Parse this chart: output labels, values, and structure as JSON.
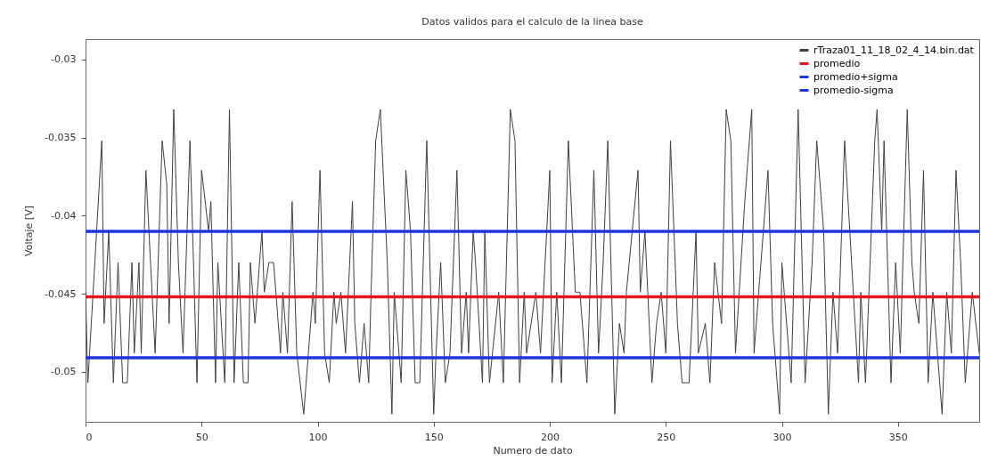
{
  "chart_data": {
    "type": "line",
    "title": "Datos validos para el calculo de la linea base",
    "xlabel": "Numero de dato",
    "ylabel": "Voltaje [V]",
    "xlim": [
      0,
      385
    ],
    "xticks": [
      0,
      50,
      100,
      150,
      200,
      250,
      300,
      350
    ],
    "ylim": [
      -0.0532,
      -0.0287
    ],
    "yticks": [
      -0.05,
      -0.045,
      -0.04,
      -0.035,
      -0.03
    ],
    "grid": false,
    "legend": "top right",
    "series": [
      {
        "name": "rTraza01_11_18_02_4_14.bin.dat",
        "color": "#404040",
        "x": [
          0,
          1,
          4,
          7,
          8,
          10,
          12,
          14,
          16,
          18,
          20,
          21,
          23,
          24,
          26,
          28,
          30,
          33,
          35,
          36,
          38,
          40,
          42,
          45,
          48,
          50,
          53,
          54,
          56,
          57,
          60,
          62,
          64,
          66,
          68,
          70,
          71,
          73,
          74,
          76,
          77,
          79,
          81,
          82,
          84,
          85,
          87,
          89,
          91,
          94,
          96,
          98,
          99,
          101,
          103,
          105,
          107,
          108,
          110,
          112,
          115,
          116,
          118,
          120,
          122,
          123,
          125,
          127,
          130,
          132,
          133,
          136,
          138,
          140,
          142,
          144,
          147,
          150,
          151,
          153,
          155,
          157,
          160,
          162,
          164,
          165,
          167,
          168,
          171,
          172,
          174,
          178,
          180,
          181,
          183,
          185,
          187,
          189,
          190,
          194,
          196,
          200,
          201,
          203,
          205,
          208,
          211,
          213,
          216,
          219,
          221,
          223,
          225,
          228,
          230,
          232,
          233,
          238,
          239,
          241,
          244,
          246,
          248,
          250,
          252,
          255,
          257,
          260,
          263,
          264,
          267,
          269,
          271,
          274,
          276,
          278,
          280,
          284,
          287,
          288,
          294,
          296,
          299,
          300,
          304,
          307,
          310,
          313,
          315,
          318,
          320,
          322,
          324,
          327,
          333,
          334,
          336,
          340,
          341,
          343,
          344,
          347,
          349,
          351,
          354,
          356,
          357,
          359,
          361,
          363,
          365,
          369,
          371,
          373,
          375,
          377,
          379,
          382,
          385
        ],
        "values": [
          -0.0449,
          -0.0507,
          -0.043,
          -0.0352,
          -0.0469,
          -0.041,
          -0.0507,
          -0.043,
          -0.0507,
          -0.0507,
          -0.043,
          -0.0488,
          -0.043,
          -0.0488,
          -0.0371,
          -0.043,
          -0.0488,
          -0.0352,
          -0.038,
          -0.0469,
          -0.0332,
          -0.043,
          -0.0488,
          -0.0352,
          -0.0507,
          -0.0371,
          -0.041,
          -0.0391,
          -0.0507,
          -0.043,
          -0.0507,
          -0.0332,
          -0.0507,
          -0.043,
          -0.0507,
          -0.0507,
          -0.043,
          -0.0469,
          -0.0449,
          -0.041,
          -0.0449,
          -0.043,
          -0.043,
          -0.0449,
          -0.0488,
          -0.0449,
          -0.0488,
          -0.0391,
          -0.0488,
          -0.0527,
          -0.0488,
          -0.0449,
          -0.0469,
          -0.0371,
          -0.0488,
          -0.0507,
          -0.0449,
          -0.0469,
          -0.0449,
          -0.0488,
          -0.0391,
          -0.0469,
          -0.0507,
          -0.0469,
          -0.0507,
          -0.0449,
          -0.0352,
          -0.0332,
          -0.043,
          -0.0527,
          -0.0449,
          -0.0507,
          -0.0371,
          -0.041,
          -0.0507,
          -0.0507,
          -0.0352,
          -0.0527,
          -0.0488,
          -0.043,
          -0.0507,
          -0.0488,
          -0.0371,
          -0.0488,
          -0.0449,
          -0.0488,
          -0.041,
          -0.043,
          -0.0507,
          -0.041,
          -0.0507,
          -0.0449,
          -0.0507,
          -0.0449,
          -0.0332,
          -0.0352,
          -0.0507,
          -0.0449,
          -0.0488,
          -0.0449,
          -0.0488,
          -0.0371,
          -0.0507,
          -0.0449,
          -0.0507,
          -0.0352,
          -0.0449,
          -0.0449,
          -0.0507,
          -0.0371,
          -0.0488,
          -0.043,
          -0.0352,
          -0.0527,
          -0.0469,
          -0.0488,
          -0.0449,
          -0.0371,
          -0.0449,
          -0.041,
          -0.0507,
          -0.0469,
          -0.0449,
          -0.0488,
          -0.0352,
          -0.0469,
          -0.0507,
          -0.0507,
          -0.041,
          -0.0488,
          -0.0469,
          -0.0507,
          -0.043,
          -0.0469,
          -0.0332,
          -0.0352,
          -0.0488,
          -0.0391,
          -0.0332,
          -0.0488,
          -0.0371,
          -0.0469,
          -0.0527,
          -0.043,
          -0.0507,
          -0.0332,
          -0.0507,
          -0.043,
          -0.0352,
          -0.041,
          -0.0527,
          -0.0449,
          -0.0488,
          -0.0352,
          -0.0507,
          -0.0449,
          -0.0507,
          -0.0352,
          -0.0332,
          -0.041,
          -0.0352,
          -0.0507,
          -0.043,
          -0.0488,
          -0.0332,
          -0.043,
          -0.0449,
          -0.0469,
          -0.0371,
          -0.0507,
          -0.0449,
          -0.0527,
          -0.0449,
          -0.0488,
          -0.0371,
          -0.043,
          -0.0507,
          -0.0449,
          -0.0488
        ]
      },
      {
        "name": "promedio",
        "color": "#e8141e",
        "x": [
          0,
          385
        ],
        "values": [
          -0.0452,
          -0.0452
        ]
      },
      {
        "name": "promedio+sigma",
        "color": "#2233dd",
        "x": [
          0,
          385
        ],
        "values": [
          -0.041,
          -0.041
        ]
      },
      {
        "name": "promedio-sigma",
        "color": "#2233dd",
        "x": [
          0,
          385
        ],
        "values": [
          -0.0491,
          -0.0491
        ]
      }
    ]
  }
}
